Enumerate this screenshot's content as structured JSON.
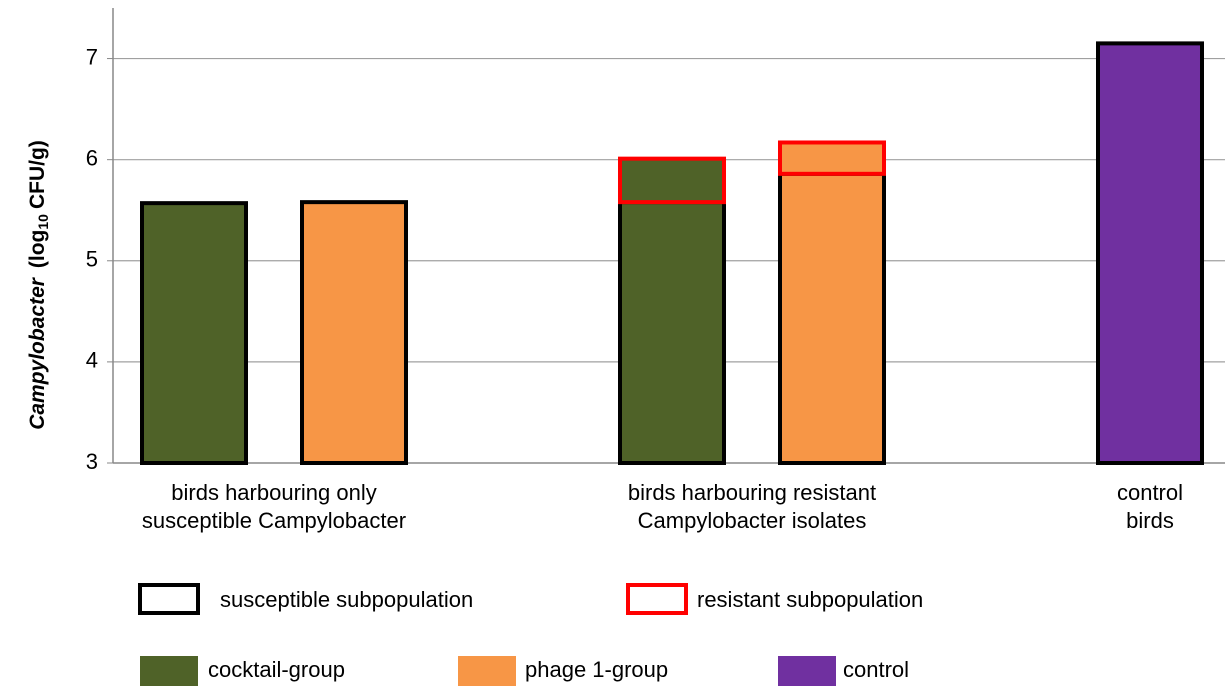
{
  "chart_data": {
    "type": "bar",
    "y_label": {
      "italic": "Campylobacter",
      "text": "(log",
      "sub": "10",
      "end": "CFU/g)"
    },
    "categories": [
      [
        "birds harbouring only",
        "susceptible Campylobacter"
      ],
      [
        "birds harbouring resistant",
        "Campylobacter isolates"
      ],
      [
        "control",
        "birds"
      ]
    ],
    "series": [
      {
        "name": "cocktail-group",
        "color": "#4f6228",
        "values": [
          5.57,
          5.58,
          null
        ],
        "resistant": [
          null,
          0.43,
          null
        ]
      },
      {
        "name": "phage 1-group",
        "color": "#f79646",
        "values": [
          5.58,
          5.86,
          null
        ],
        "resistant": [
          null,
          0.31,
          null
        ]
      },
      {
        "name": "control",
        "color": "#7030a0",
        "values": [
          null,
          null,
          7.15
        ],
        "resistant": [
          null,
          null,
          null
        ]
      }
    ],
    "outline_legend": [
      {
        "name": "susceptible subpopulation",
        "color": "#000000"
      },
      {
        "name": "resistant subpopulation",
        "color": "#ff0000"
      }
    ],
    "ylim": [
      3,
      7.5
    ],
    "yticks": [
      3,
      4,
      5,
      6,
      7
    ],
    "grid": true
  }
}
